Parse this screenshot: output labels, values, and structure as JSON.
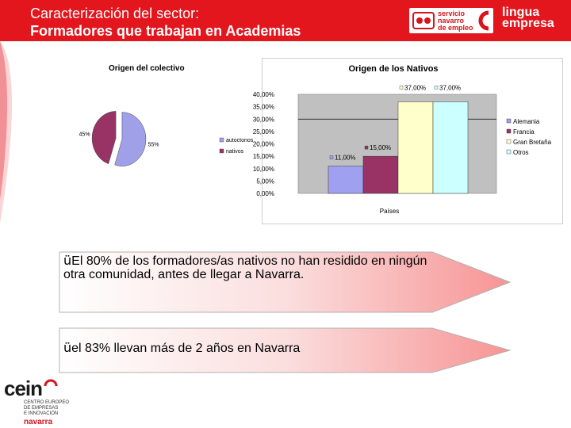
{
  "header": {
    "title_line1": "Caracterización del sector:",
    "title_line2": "Formadores que trabajan en Academias",
    "logo_sn_lines": [
      "servicio",
      "navarro",
      "de empleo"
    ],
    "logo_lingua_lines": [
      "lingua",
      "empresa"
    ]
  },
  "chart_data": [
    {
      "type": "pie",
      "title": "Origen del colectivo",
      "slices": [
        {
          "label": "autoctonos",
          "value": 55,
          "data_label": "55%",
          "color": "#a0a0e8"
        },
        {
          "label": "nativos",
          "value": 45,
          "data_label": "45%",
          "color": "#993366"
        }
      ]
    },
    {
      "type": "bar",
      "title": "Origen de los Nativos",
      "xlabel": "Países",
      "ylabel": "",
      "ylim": [
        0,
        40
      ],
      "yticks": [
        "0,00%",
        "5,00%",
        "10,00%",
        "15,00%",
        "20,00%",
        "25,00%",
        "30,00%",
        "35,00%",
        "40,00%"
      ],
      "grid": true,
      "legend_position": "right",
      "series": [
        {
          "name": "Alemania",
          "value": 11,
          "data_label": "11,00%",
          "color": "#a0a0f0"
        },
        {
          "name": "Francia",
          "value": 15,
          "data_label": "15,00%",
          "color": "#993366"
        },
        {
          "name": "Gran Bretaña",
          "value": 37,
          "data_label": "37,00%",
          "color": "#ffffcc"
        },
        {
          "name": "Otros",
          "value": 37,
          "data_label": "37,00%",
          "color": "#ccffff"
        }
      ]
    }
  ],
  "banners": [
    {
      "check": "ü",
      "text": "El 80% de los formadores/as nativos no han residido en ningún otra comunidad, antes de llegar a Navarra."
    },
    {
      "check": "ü",
      "text": "el 83% llevan más de 2 años en Navarra"
    }
  ],
  "footer": {
    "cein_word": "cein",
    "cein_lines": [
      "CENTRO EUROPEO",
      "DE EMPRESAS",
      "E INNOVACIÓN"
    ],
    "cein_region": "navarra"
  }
}
